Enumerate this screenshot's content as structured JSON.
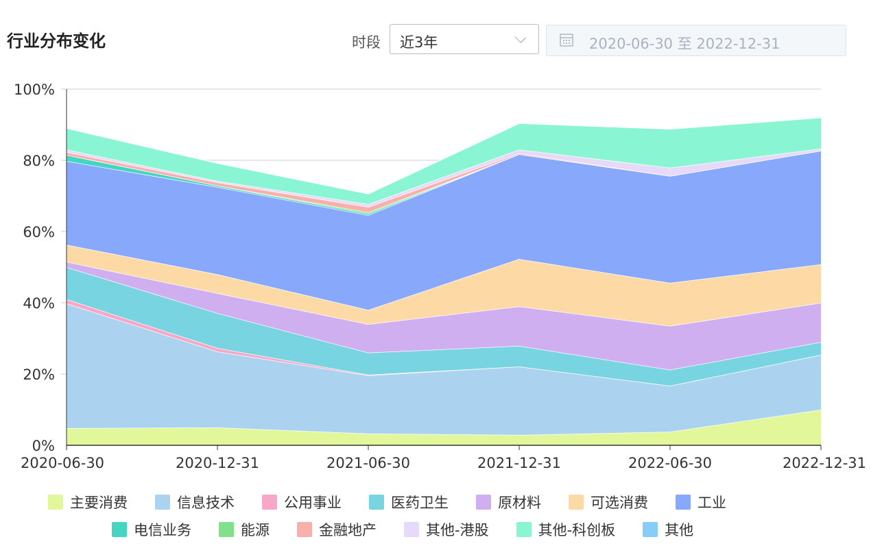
{
  "header": {
    "title": "行业分布变化",
    "period_label": "时段",
    "period_value": "近3年",
    "date_range": "2020-06-30 至 2022-12-31"
  },
  "chart_data": {
    "type": "area",
    "stacked": true,
    "title": "",
    "categories": [
      "2020-06-30",
      "2020-12-31",
      "2021-06-30",
      "2021-12-31",
      "2022-06-30",
      "2022-12-31"
    ],
    "ylim": [
      0,
      100
    ],
    "yticks": [
      "0%",
      "20%",
      "40%",
      "60%",
      "80%",
      "100%"
    ],
    "grid": true,
    "legend_position": "bottom",
    "series": [
      {
        "name": "主要消费",
        "color": "#e2f79a",
        "values": [
          4.8,
          5.0,
          3.3,
          2.9,
          3.8,
          10.0
        ]
      },
      {
        "name": "信息技术",
        "color": "#abd2ef",
        "values": [
          35.0,
          21.3,
          16.3,
          19.2,
          12.9,
          15.4
        ]
      },
      {
        "name": "公用事业",
        "color": "#f9a7c8",
        "values": [
          1.2,
          1.0,
          0.2,
          0.0,
          0.0,
          0.0
        ]
      },
      {
        "name": "医药卫生",
        "color": "#78d4e0",
        "values": [
          9.0,
          9.8,
          6.2,
          5.8,
          4.5,
          3.6
        ]
      },
      {
        "name": "原材料",
        "color": "#d0aff0",
        "values": [
          1.5,
          5.6,
          8.0,
          11.1,
          12.3,
          11.0
        ]
      },
      {
        "name": "可选消费",
        "color": "#fdd9a6",
        "values": [
          4.8,
          5.3,
          4.0,
          13.3,
          12.1,
          10.8
        ]
      },
      {
        "name": "工业",
        "color": "#87a8fb",
        "values": [
          23.5,
          24.5,
          26.6,
          29.4,
          30.0,
          31.9
        ]
      },
      {
        "name": "电信业务",
        "color": "#45d6c3",
        "values": [
          1.7,
          0.4,
          0.4,
          0.0,
          0.0,
          0.0
        ]
      },
      {
        "name": "能源",
        "color": "#80e08c",
        "values": [
          0.0,
          0.0,
          0.4,
          0.0,
          0.0,
          0.0
        ]
      },
      {
        "name": "金融地产",
        "color": "#f8b1aa",
        "values": [
          0.8,
          0.9,
          1.5,
          0.3,
          0.0,
          0.0
        ]
      },
      {
        "name": "其他-港股",
        "color": "#e6d9fa",
        "values": [
          0.7,
          0.4,
          0.8,
          1.0,
          2.3,
          0.6
        ]
      },
      {
        "name": "其他-科创板",
        "color": "#8af5d2",
        "values": [
          6.0,
          5.0,
          2.9,
          7.4,
          10.9,
          8.7
        ]
      },
      {
        "name": "其他",
        "color": "#86cef9",
        "values": [
          0,
          0,
          0,
          0,
          0,
          0
        ]
      }
    ]
  }
}
